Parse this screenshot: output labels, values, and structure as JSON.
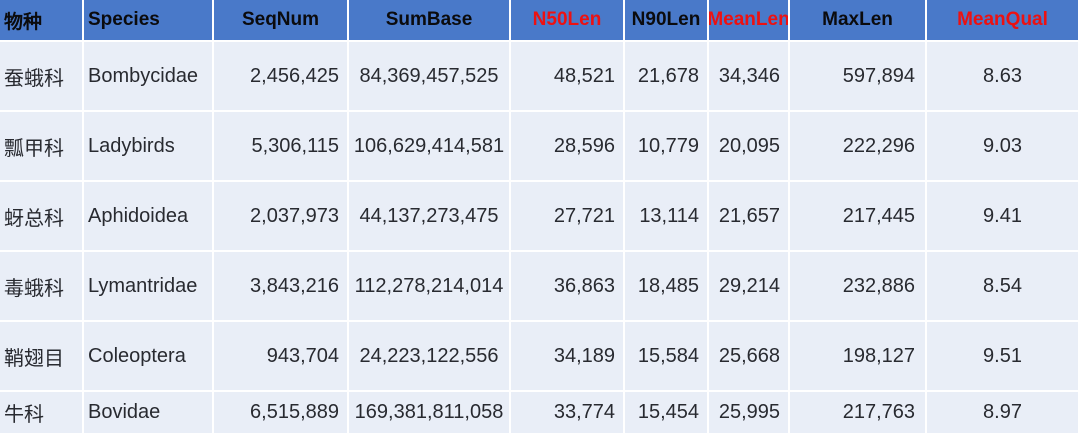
{
  "chart_data": {
    "type": "table",
    "columns": [
      {
        "label": "物种",
        "color": "black"
      },
      {
        "label": "Species",
        "color": "black"
      },
      {
        "label": "SeqNum",
        "color": "black"
      },
      {
        "label": "SumBase",
        "color": "black"
      },
      {
        "label": "N50Len",
        "color": "red"
      },
      {
        "label": "N90Len",
        "color": "black"
      },
      {
        "label": "MeanLen",
        "color": "red"
      },
      {
        "label": "MaxLen",
        "color": "black"
      },
      {
        "label": "MeanQual",
        "color": "red"
      }
    ],
    "rows": [
      [
        "蚕蛾科",
        "Bombycidae",
        "2,456,425",
        "84,369,457,525",
        "48,521",
        "21,678",
        "34,346",
        "597,894",
        "8.63"
      ],
      [
        "瓢甲科",
        "Ladybirds",
        "5,306,115",
        "106,629,414,581",
        "28,596",
        "10,779",
        "20,095",
        "222,296",
        "9.03"
      ],
      [
        "蚜总科",
        "Aphidoidea",
        "2,037,973",
        "44,137,273,475",
        "27,721",
        "13,114",
        "21,657",
        "217,445",
        "9.41"
      ],
      [
        "毒蛾科",
        "Lymantridae",
        "3,843,216",
        "112,278,214,014",
        "36,863",
        "18,485",
        "29,214",
        "232,886",
        "8.54"
      ],
      [
        "鞘翅目",
        "Coleoptera",
        "943,704",
        "24,223,122,556",
        "34,189",
        "15,584",
        "25,668",
        "198,127",
        "9.51"
      ],
      [
        "牛科",
        "Bovidae",
        "6,515,889",
        "169,381,811,058",
        "33,774",
        "15,454",
        "25,995",
        "217,763",
        "8.97"
      ]
    ]
  },
  "colors": {
    "header_bg": "#4979C9",
    "header_text": "#0B0B0D",
    "header_accent_red": "#ED1111",
    "row_bg": "#E9EEF7",
    "cell_text": "#282A30",
    "gridline": "#FFFFFF",
    "page_bg": "#FFFFFF"
  }
}
